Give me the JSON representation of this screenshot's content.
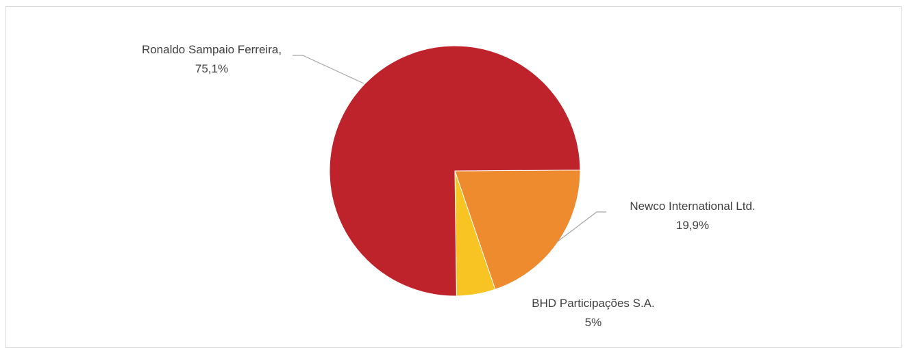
{
  "chart_data": {
    "type": "pie",
    "title": "",
    "slices": [
      {
        "label": "Newco International Ltd.",
        "value": 19.9,
        "value_label": "19,9%",
        "color": "#ED8B2E"
      },
      {
        "label": "BHD Participações S.A.",
        "value": 5.0,
        "value_label": "5%",
        "color": "#F8C423"
      },
      {
        "label": "Ronaldo Sampaio Ferreira,",
        "value": 75.1,
        "value_label": "75,1%",
        "color": "#BE232C"
      }
    ],
    "legend": "none",
    "data_labels": "outside with leader lines"
  }
}
